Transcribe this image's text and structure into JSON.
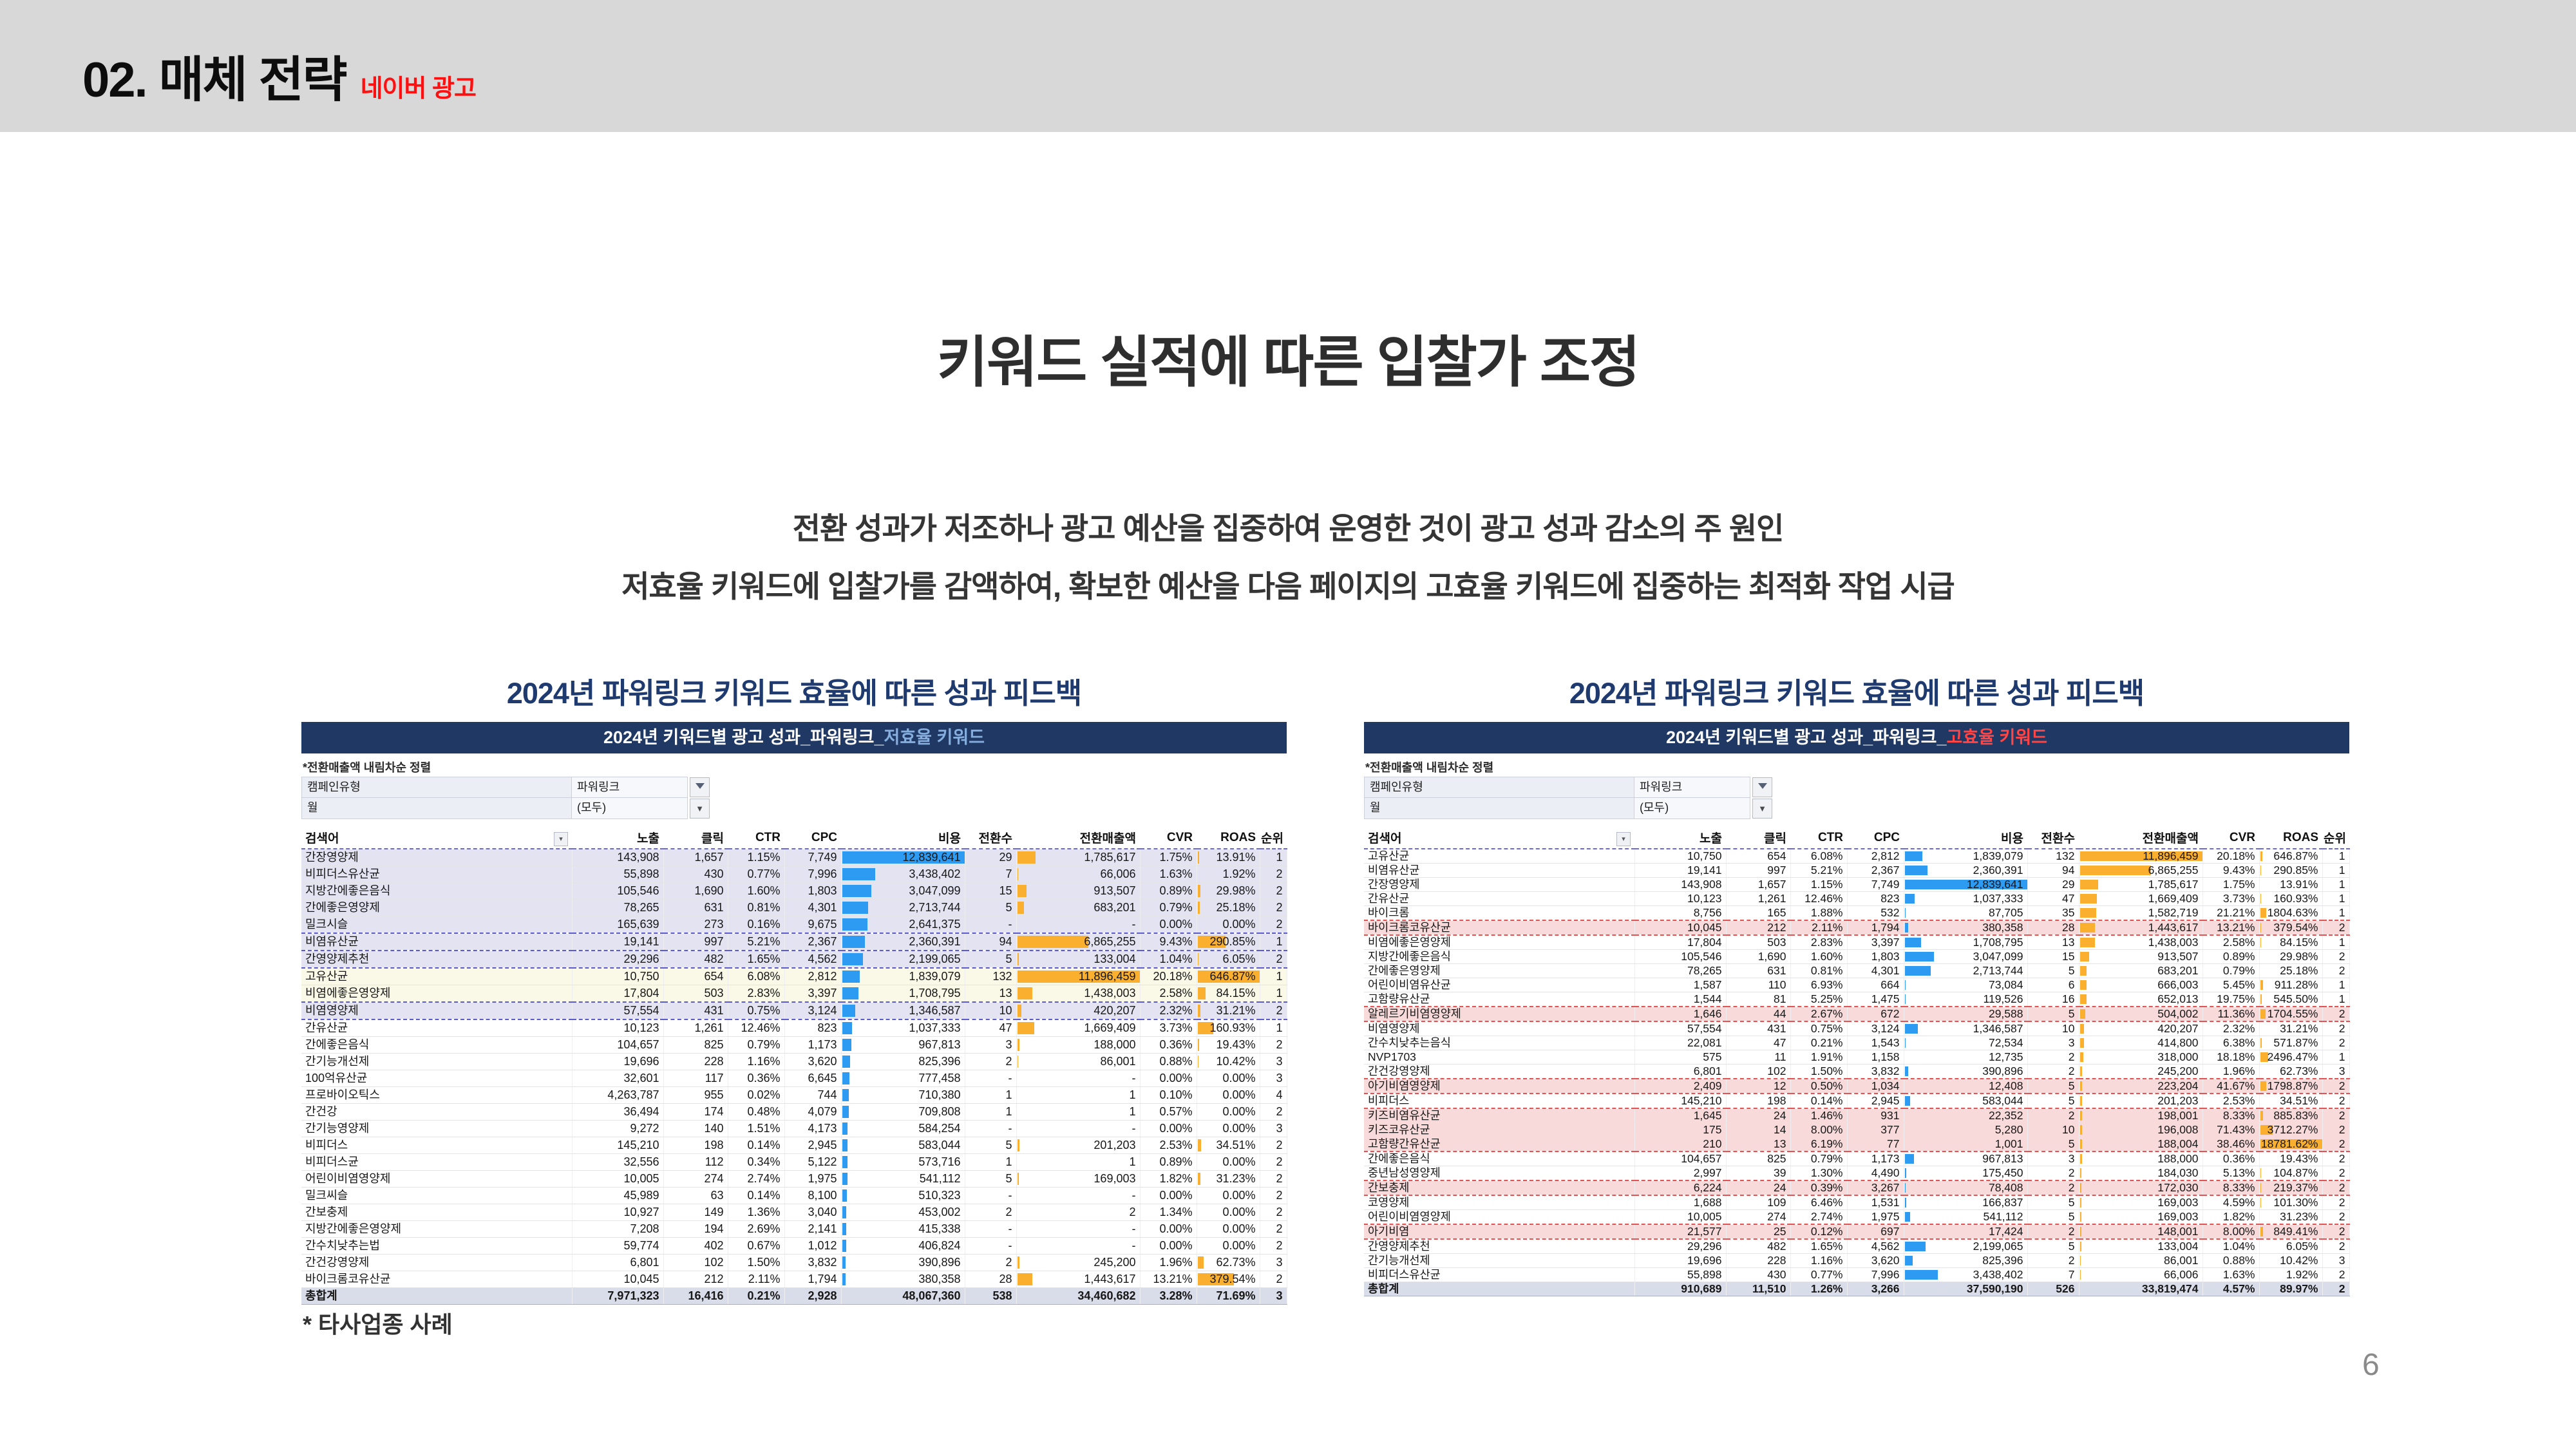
{
  "slide": {
    "title": "02. 매체 전략",
    "title_tag": "네이버 광고",
    "heading": "키워드 실적에 따른 입찰가 조정",
    "desc_line1": "전환 성과가 저조하나 광고 예산을 집중하여 운영한 것이 광고 성과 감소의 주 원인",
    "desc_line2": "저효율 키워드에 입찰가를 감액하여, 확보한 예산을  다음 페이지의 고효율 키워드에 집중하는 최적화 작업 시급",
    "footnote": "* 타사업종 사례",
    "page_number": "6"
  },
  "colors": {
    "header_band": "#d8d8d8",
    "accent_navy": "#1f3864",
    "title_red": "#fe1010",
    "low_eff_highlight": "#85aede",
    "high_eff_highlight": "#ff4545",
    "bar_blue": "#2e9bf3",
    "bar_orange": "#fbaf2e",
    "row_lavender": "#e3e3f2",
    "row_cream": "#faf8e6",
    "row_pink": "#f8dada"
  },
  "tables": {
    "left": {
      "title": "2024년 파워링크 키워드 효율에 따른 성과 피드백",
      "band": {
        "prefix": "2024년 키워드별 광고 성과_파워링크_",
        "highlight": "저효율 키워드"
      },
      "sort_note": "*전환매출액 내림차순 정렬",
      "filters": [
        {
          "label": "캠페인유형",
          "value": "파워링크"
        },
        {
          "label": "월",
          "value": "(모두)"
        }
      ],
      "columns": [
        "검색어",
        "노출",
        "클릭",
        "CTR",
        "CPC",
        "비용",
        "전환수",
        "전환매출액",
        "CVR",
        "ROAS",
        "순위"
      ],
      "rows": [
        {
          "c": [
            "간장영양제",
            "143,908",
            "1,657",
            "1.15%",
            "7,749",
            "12,839,641",
            "29",
            "1,785,617",
            "1.75%",
            "13.91%",
            "1"
          ],
          "hl": "lav"
        },
        {
          "c": [
            "비피더스유산균",
            "55,898",
            "430",
            "0.77%",
            "7,996",
            "3,438,402",
            "7",
            "66,006",
            "1.63%",
            "1.92%",
            "2"
          ],
          "hl": "lav"
        },
        {
          "c": [
            "지방간에좋은음식",
            "105,546",
            "1,690",
            "1.60%",
            "1,803",
            "3,047,099",
            "15",
            "913,507",
            "0.89%",
            "29.98%",
            "2"
          ],
          "hl": "lav"
        },
        {
          "c": [
            "간에좋은영양제",
            "78,265",
            "631",
            "0.81%",
            "4,301",
            "2,713,744",
            "5",
            "683,201",
            "0.79%",
            "25.18%",
            "2"
          ],
          "hl": "lav"
        },
        {
          "c": [
            "밀크시슬",
            "165,639",
            "273",
            "0.16%",
            "9,675",
            "2,641,375",
            "-",
            "-",
            "0.00%",
            "0.00%",
            "2"
          ],
          "hl": "lav",
          "db": 1
        },
        {
          "c": [
            "비염유산균",
            "19,141",
            "997",
            "5.21%",
            "2,367",
            "2,360,391",
            "94",
            "6,865,255",
            "9.43%",
            "290.85%",
            "1"
          ],
          "hl": "lav",
          "db": 1
        },
        {
          "c": [
            "간영양제추천",
            "29,296",
            "482",
            "1.65%",
            "4,562",
            "2,199,065",
            "5",
            "133,004",
            "1.04%",
            "6.05%",
            "2"
          ],
          "hl": "lav",
          "db": 1
        },
        {
          "c": [
            "고유산균",
            "10,750",
            "654",
            "6.08%",
            "2,812",
            "1,839,079",
            "132",
            "11,896,459",
            "20.18%",
            "646.87%",
            "1"
          ],
          "hl": "cream"
        },
        {
          "c": [
            "비염에좋은영양제",
            "17,804",
            "503",
            "2.83%",
            "3,397",
            "1,708,795",
            "13",
            "1,438,003",
            "2.58%",
            "84.15%",
            "1"
          ],
          "hl": "cream",
          "db": 1
        },
        {
          "c": [
            "비염영양제",
            "57,554",
            "431",
            "0.75%",
            "3,124",
            "1,346,587",
            "10",
            "420,207",
            "2.32%",
            "31.21%",
            "2"
          ],
          "hl": "lav",
          "db": 1
        },
        {
          "c": [
            "간유산균",
            "10,123",
            "1,261",
            "12.46%",
            "823",
            "1,037,333",
            "47",
            "1,669,409",
            "3.73%",
            "160.93%",
            "1"
          ]
        },
        {
          "c": [
            "간에좋은음식",
            "104,657",
            "825",
            "0.79%",
            "1,173",
            "967,813",
            "3",
            "188,000",
            "0.36%",
            "19.43%",
            "2"
          ]
        },
        {
          "c": [
            "간기능개선제",
            "19,696",
            "228",
            "1.16%",
            "3,620",
            "825,396",
            "2",
            "86,001",
            "0.88%",
            "10.42%",
            "3"
          ]
        },
        {
          "c": [
            "100억유산균",
            "32,601",
            "117",
            "0.36%",
            "6,645",
            "777,458",
            "-",
            "-",
            "0.00%",
            "0.00%",
            "3"
          ]
        },
        {
          "c": [
            "프로바이오틱스",
            "4,263,787",
            "955",
            "0.02%",
            "744",
            "710,380",
            "1",
            "1",
            "0.10%",
            "0.00%",
            "4"
          ]
        },
        {
          "c": [
            "간건강",
            "36,494",
            "174",
            "0.48%",
            "4,079",
            "709,808",
            "1",
            "1",
            "0.57%",
            "0.00%",
            "2"
          ]
        },
        {
          "c": [
            "간기능영양제",
            "9,272",
            "140",
            "1.51%",
            "4,173",
            "584,254",
            "-",
            "-",
            "0.00%",
            "0.00%",
            "3"
          ]
        },
        {
          "c": [
            "비피더스",
            "145,210",
            "198",
            "0.14%",
            "2,945",
            "583,044",
            "5",
            "201,203",
            "2.53%",
            "34.51%",
            "2"
          ]
        },
        {
          "c": [
            "비피더스균",
            "32,556",
            "112",
            "0.34%",
            "5,122",
            "573,716",
            "1",
            "1",
            "0.89%",
            "0.00%",
            "2"
          ]
        },
        {
          "c": [
            "어린이비염영양제",
            "10,005",
            "274",
            "2.74%",
            "1,975",
            "541,112",
            "5",
            "169,003",
            "1.82%",
            "31.23%",
            "2"
          ]
        },
        {
          "c": [
            "밀크씨슬",
            "45,989",
            "63",
            "0.14%",
            "8,100",
            "510,323",
            "-",
            "-",
            "0.00%",
            "0.00%",
            "2"
          ]
        },
        {
          "c": [
            "간보충제",
            "10,927",
            "149",
            "1.36%",
            "3,040",
            "453,002",
            "2",
            "2",
            "1.34%",
            "0.00%",
            "2"
          ]
        },
        {
          "c": [
            "지방간에좋은영양제",
            "7,208",
            "194",
            "2.69%",
            "2,141",
            "415,338",
            "-",
            "-",
            "0.00%",
            "0.00%",
            "2"
          ]
        },
        {
          "c": [
            "간수치낮추는법",
            "59,774",
            "402",
            "0.67%",
            "1,012",
            "406,824",
            "-",
            "-",
            "0.00%",
            "0.00%",
            "2"
          ]
        },
        {
          "c": [
            "간건강영양제",
            "6,801",
            "102",
            "1.50%",
            "3,832",
            "390,896",
            "2",
            "245,200",
            "1.96%",
            "62.73%",
            "3"
          ]
        },
        {
          "c": [
            "바이크롬코유산균",
            "10,045",
            "212",
            "2.11%",
            "1,794",
            "380,358",
            "28",
            "1,443,617",
            "13.21%",
            "379.54%",
            "2"
          ]
        }
      ],
      "total": [
        "총합계",
        "7,971,323",
        "16,416",
        "0.21%",
        "2,928",
        "48,067,360",
        "538",
        "34,460,682",
        "3.28%",
        "71.69%",
        "3"
      ]
    },
    "right": {
      "title": "2024년 파워링크 키워드 효율에 따른 성과 피드백",
      "band": {
        "prefix": "2024년 키워드별 광고 성과_파워링크_",
        "highlight": "고효율 키워드"
      },
      "sort_note": "*전환매출액 내림차순 정렬",
      "filters": [
        {
          "label": "캠페인유형",
          "value": "파워링크"
        },
        {
          "label": "월",
          "value": "(모두)"
        }
      ],
      "columns": [
        "검색어",
        "노출",
        "클릭",
        "CTR",
        "CPC",
        "비용",
        "전환수",
        "전환매출액",
        "CVR",
        "ROAS",
        "순위"
      ],
      "rows": [
        {
          "c": [
            "고유산균",
            "10,750",
            "654",
            "6.08%",
            "2,812",
            "1,839,079",
            "132",
            "11,896,459",
            "20.18%",
            "646.87%",
            "1"
          ]
        },
        {
          "c": [
            "비염유산균",
            "19,141",
            "997",
            "5.21%",
            "2,367",
            "2,360,391",
            "94",
            "6,865,255",
            "9.43%",
            "290.85%",
            "1"
          ]
        },
        {
          "c": [
            "간장영양제",
            "143,908",
            "1,657",
            "1.15%",
            "7,749",
            "12,839,641",
            "29",
            "1,785,617",
            "1.75%",
            "13.91%",
            "1"
          ]
        },
        {
          "c": [
            "간유산균",
            "10,123",
            "1,261",
            "12.46%",
            "823",
            "1,037,333",
            "47",
            "1,669,409",
            "3.73%",
            "160.93%",
            "1"
          ]
        },
        {
          "c": [
            "바이크롬",
            "8,756",
            "165",
            "1.88%",
            "532",
            "87,705",
            "35",
            "1,582,719",
            "21.21%",
            "1804.63%",
            "1"
          ]
        },
        {
          "c": [
            "바이크롬코유산균",
            "10,045",
            "212",
            "2.11%",
            "1,794",
            "380,358",
            "28",
            "1,443,617",
            "13.21%",
            "379.54%",
            "2"
          ],
          "hl": "pink",
          "dt": 1,
          "db": 1
        },
        {
          "c": [
            "비염에좋은영양제",
            "17,804",
            "503",
            "2.83%",
            "3,397",
            "1,708,795",
            "13",
            "1,438,003",
            "2.58%",
            "84.15%",
            "1"
          ]
        },
        {
          "c": [
            "지방간에좋은음식",
            "105,546",
            "1,690",
            "1.60%",
            "1,803",
            "3,047,099",
            "15",
            "913,507",
            "0.89%",
            "29.98%",
            "2"
          ]
        },
        {
          "c": [
            "간에좋은영양제",
            "78,265",
            "631",
            "0.81%",
            "4,301",
            "2,713,744",
            "5",
            "683,201",
            "0.79%",
            "25.18%",
            "2"
          ]
        },
        {
          "c": [
            "어린이비염유산균",
            "1,587",
            "110",
            "6.93%",
            "664",
            "73,084",
            "6",
            "666,003",
            "5.45%",
            "911.28%",
            "1"
          ]
        },
        {
          "c": [
            "고함량유산균",
            "1,544",
            "81",
            "5.25%",
            "1,475",
            "119,526",
            "16",
            "652,013",
            "19.75%",
            "545.50%",
            "1"
          ]
        },
        {
          "c": [
            "알레르기비염영양제",
            "1,646",
            "44",
            "2.67%",
            "672",
            "29,588",
            "5",
            "504,002",
            "11.36%",
            "1704.55%",
            "2"
          ],
          "hl": "pink",
          "dt": 1,
          "db": 1
        },
        {
          "c": [
            "비염영양제",
            "57,554",
            "431",
            "0.75%",
            "3,124",
            "1,346,587",
            "10",
            "420,207",
            "2.32%",
            "31.21%",
            "2"
          ]
        },
        {
          "c": [
            "간수치낮추는음식",
            "22,081",
            "47",
            "0.21%",
            "1,543",
            "72,534",
            "3",
            "414,800",
            "6.38%",
            "571.87%",
            "2"
          ]
        },
        {
          "c": [
            "NVP1703",
            "575",
            "11",
            "1.91%",
            "1,158",
            "12,735",
            "2",
            "318,000",
            "18.18%",
            "2496.47%",
            "1"
          ]
        },
        {
          "c": [
            "간건강영양제",
            "6,801",
            "102",
            "1.50%",
            "3,832",
            "390,896",
            "2",
            "245,200",
            "1.96%",
            "62.73%",
            "3"
          ]
        },
        {
          "c": [
            "아기비염영양제",
            "2,409",
            "12",
            "0.50%",
            "1,034",
            "12,408",
            "5",
            "223,204",
            "41.67%",
            "1798.87%",
            "2"
          ],
          "hl": "pink",
          "dt": 1,
          "db": 1
        },
        {
          "c": [
            "비피더스",
            "145,210",
            "198",
            "0.14%",
            "2,945",
            "583,044",
            "5",
            "201,203",
            "2.53%",
            "34.51%",
            "2"
          ]
        },
        {
          "c": [
            "키즈비염유산균",
            "1,645",
            "24",
            "1.46%",
            "931",
            "22,352",
            "2",
            "198,001",
            "8.33%",
            "885.83%",
            "2"
          ],
          "hl": "pink",
          "dt": 1
        },
        {
          "c": [
            "키즈코유산균",
            "175",
            "14",
            "8.00%",
            "377",
            "5,280",
            "10",
            "196,008",
            "71.43%",
            "3712.27%",
            "2"
          ],
          "hl": "pink"
        },
        {
          "c": [
            "고함량간유산균",
            "210",
            "13",
            "6.19%",
            "77",
            "1,001",
            "5",
            "188,004",
            "38.46%",
            "18781.62%",
            "2"
          ],
          "hl": "pink",
          "db": 1
        },
        {
          "c": [
            "간에좋은음식",
            "104,657",
            "825",
            "0.79%",
            "1,173",
            "967,813",
            "3",
            "188,000",
            "0.36%",
            "19.43%",
            "2"
          ]
        },
        {
          "c": [
            "중년남성영양제",
            "2,997",
            "39",
            "1.30%",
            "4,490",
            "175,450",
            "2",
            "184,030",
            "5.13%",
            "104.87%",
            "2"
          ]
        },
        {
          "c": [
            "간보충제",
            "6,224",
            "24",
            "0.39%",
            "3,267",
            "78,408",
            "2",
            "172,030",
            "8.33%",
            "219.37%",
            "2"
          ],
          "hl": "pink",
          "dt": 1,
          "db": 1
        },
        {
          "c": [
            "코영양제",
            "1,688",
            "109",
            "6.46%",
            "1,531",
            "166,837",
            "5",
            "169,003",
            "4.59%",
            "101.30%",
            "2"
          ]
        },
        {
          "c": [
            "어린이비염영양제",
            "10,005",
            "274",
            "2.74%",
            "1,975",
            "541,112",
            "5",
            "169,003",
            "1.82%",
            "31.23%",
            "2"
          ]
        },
        {
          "c": [
            "아기비염",
            "21,577",
            "25",
            "0.12%",
            "697",
            "17,424",
            "2",
            "148,001",
            "8.00%",
            "849.41%",
            "2"
          ],
          "hl": "pink",
          "dt": 1,
          "db": 1
        },
        {
          "c": [
            "간영양제추천",
            "29,296",
            "482",
            "1.65%",
            "4,562",
            "2,199,065",
            "5",
            "133,004",
            "1.04%",
            "6.05%",
            "2"
          ]
        },
        {
          "c": [
            "간기능개선제",
            "19,696",
            "228",
            "1.16%",
            "3,620",
            "825,396",
            "2",
            "86,001",
            "0.88%",
            "10.42%",
            "3"
          ]
        },
        {
          "c": [
            "비피더스유산균",
            "55,898",
            "430",
            "0.77%",
            "7,996",
            "3,438,402",
            "7",
            "66,006",
            "1.63%",
            "1.92%",
            "2"
          ]
        }
      ],
      "total": [
        "총합계",
        "910,689",
        "11,510",
        "1.26%",
        "3,266",
        "37,590,190",
        "526",
        "33,819,474",
        "4.57%",
        "89.97%",
        "2"
      ]
    }
  }
}
